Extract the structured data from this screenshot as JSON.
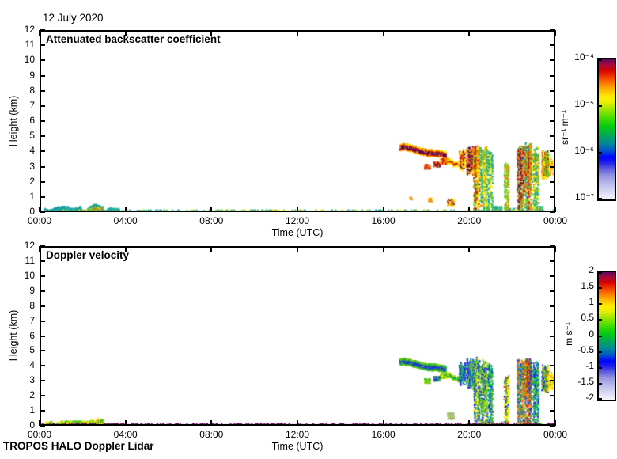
{
  "figure": {
    "date_title": "12 July 2020",
    "footer": "TROPOS HALO Doppler Lidar"
  },
  "colormap_stops": [
    {
      "p": 0.0,
      "c": "#f4f4fb"
    },
    {
      "p": 0.05,
      "c": "#dcdcf4"
    },
    {
      "p": 0.11,
      "c": "#bcbcec"
    },
    {
      "p": 0.17,
      "c": "#9494e0"
    },
    {
      "p": 0.22,
      "c": "#5c5cdc"
    },
    {
      "p": 0.26,
      "c": "#2222ee"
    },
    {
      "p": 0.3,
      "c": "#0000ff"
    },
    {
      "p": 0.35,
      "c": "#0055cc"
    },
    {
      "p": 0.4,
      "c": "#008899"
    },
    {
      "p": 0.46,
      "c": "#00aa55"
    },
    {
      "p": 0.52,
      "c": "#00cc11"
    },
    {
      "p": 0.58,
      "c": "#44dd00"
    },
    {
      "p": 0.64,
      "c": "#99e600"
    },
    {
      "p": 0.69,
      "c": "#e6ee00"
    },
    {
      "p": 0.73,
      "c": "#ffee00"
    },
    {
      "p": 0.78,
      "c": "#ffbb00"
    },
    {
      "p": 0.83,
      "c": "#ff7700"
    },
    {
      "p": 0.88,
      "c": "#f03300"
    },
    {
      "p": 0.92,
      "c": "#d80000"
    },
    {
      "p": 0.96,
      "c": "#a8093c"
    },
    {
      "p": 1.0,
      "c": "#5c0a5c"
    }
  ],
  "chart_data": [
    {
      "type": "heatmap",
      "title": "Attenuated backscatter coefficient",
      "xlabel": "Time (UTC)",
      "ylabel": "Height (km)",
      "xlim_hours": [
        0,
        24
      ],
      "ylim_km": [
        0,
        12
      ],
      "x_ticks": {
        "hours": [
          0,
          4,
          8,
          12,
          16,
          20,
          24
        ],
        "labels": [
          "00:00",
          "04:00",
          "08:00",
          "12:00",
          "16:00",
          "20:00",
          "00:00"
        ]
      },
      "y_ticks": {
        "km": [
          0,
          1,
          2,
          3,
          4,
          5,
          6,
          7,
          8,
          9,
          10,
          11,
          12
        ]
      },
      "colorbar": {
        "unit": "sr⁻¹ m⁻¹",
        "scale": "log",
        "range": [
          "1e-7",
          "1e-4"
        ],
        "tick_labels": [
          "10⁻⁴",
          "10⁻⁵",
          "10⁻⁶",
          "10⁻⁷"
        ]
      },
      "features": [
        {
          "type": "layer",
          "t0": 0.25,
          "t1": 1.95,
          "hmax": 0.38,
          "fill": 0.95,
          "colors": [
            "#18a2a2",
            "#1898a8",
            "#22afa0"
          ],
          "core": [
            "#33bb66"
          ],
          "core_p": 0.12
        },
        {
          "type": "layer",
          "t0": 1.95,
          "t1": 2.95,
          "hmax": 0.52,
          "fill": 1.0,
          "colors": [
            "#18a2a2",
            "#33bb66"
          ],
          "core": [
            "#aadd00",
            "#ffee00",
            "#ff9900",
            "#ff5500"
          ],
          "core_p": 0.55
        },
        {
          "type": "layer",
          "t0": 2.95,
          "t1": 3.75,
          "hmax": 0.3,
          "fill": 0.9,
          "colors": [
            "#18a2a2",
            "#22afa0"
          ],
          "core": [
            "#33bb66"
          ],
          "core_p": 0.2
        },
        {
          "type": "layer",
          "t0": 4.5,
          "t1": 5.35,
          "hmax": 0.15,
          "fill": 0.8,
          "colors": [
            "#18a2a2"
          ],
          "core": [],
          "core_p": 0
        },
        {
          "type": "layer",
          "t0": 6.9,
          "t1": 7.7,
          "hmax": 0.13,
          "fill": 0.7,
          "colors": [
            "#18a2a2",
            "#33bb66"
          ],
          "core": [],
          "core_p": 0
        },
        {
          "type": "layer",
          "t0": 20.2,
          "t1": 23.4,
          "hmax": 0.4,
          "fill": 0.45,
          "colors": [
            "#18a2a2",
            "#33bb66"
          ],
          "core": [
            "#66cc22"
          ],
          "core_p": 0.2
        },
        {
          "type": "band",
          "t0": 16.78,
          "t1": 18.95,
          "h0": 4.3,
          "h1": 3.72,
          "thick": 0.4,
          "gap": 0.05,
          "core": "#5c0a5c",
          "mid": "#cc1100",
          "edges": [
            "#ff8800",
            "#ffee00"
          ]
        },
        {
          "type": "band",
          "t0": 19.0,
          "t1": 19.55,
          "h0": 3.4,
          "h1": 3.05,
          "thick": 0.3,
          "gap": 0.3,
          "core": "#cc1100",
          "mid": "#ff8800",
          "edges": [
            "#ffee00"
          ]
        },
        {
          "type": "spots",
          "items": [
            {
              "t": 18.05,
              "h": 3.0,
              "w": 0.25,
              "hh": 0.3,
              "colors": [
                "#ff8800",
                "#cc1100"
              ]
            },
            {
              "t": 18.5,
              "h": 3.15,
              "w": 0.3,
              "hh": 0.3,
              "colors": [
                "#cc1100",
                "#5c0a5c",
                "#ff8800"
              ]
            },
            {
              "t": 18.85,
              "h": 3.35,
              "w": 0.35,
              "hh": 0.35,
              "colors": [
                "#cc1100",
                "#ff8800",
                "#ffee00"
              ]
            },
            {
              "t": 18.2,
              "h": 0.8,
              "w": 0.15,
              "hh": 0.2,
              "colors": [
                "#ff8800",
                "#ffee00"
              ]
            },
            {
              "t": 19.15,
              "h": 0.65,
              "w": 0.3,
              "hh": 0.4,
              "colors": [
                "#5c0a5c",
                "#ff8800",
                "#ffee00"
              ]
            },
            {
              "t": 17.3,
              "h": 0.9,
              "w": 0.12,
              "hh": 0.15,
              "colors": [
                "#ff8800"
              ]
            }
          ]
        },
        {
          "type": "streaks",
          "items": [
            {
              "t": 19.68,
              "w": 0.25,
              "h0": 2.9,
              "h1": 4.25,
              "colors": [
                "#cc1100",
                "#ff8800",
                "#5c0a5c",
                "#ffee00"
              ],
              "density": 0.75
            },
            {
              "t": 20.05,
              "w": 0.3,
              "h0": 2.6,
              "h1": 4.5,
              "colors": [
                "#5c0a5c",
                "#cc1100",
                "#ff8800",
                "#ffee00"
              ],
              "density": 0.85
            },
            {
              "t": 20.35,
              "w": 0.25,
              "h0": 0.0,
              "h1": 4.6,
              "colors": [
                "#cc1100",
                "#ff8800",
                "#ffee00",
                "#55cc22"
              ],
              "density": 0.8
            },
            {
              "t": 20.7,
              "w": 0.3,
              "h0": 0.0,
              "h1": 4.4,
              "colors": [
                "#55cc22",
                "#ffee00",
                "#ff8800",
                "#22aa88"
              ],
              "density": 0.75
            },
            {
              "t": 21.0,
              "w": 0.2,
              "h0": 0.0,
              "h1": 4.2,
              "colors": [
                "#55cc22",
                "#ffee00",
                "#18a2a2"
              ],
              "density": 0.6
            },
            {
              "t": 21.75,
              "w": 0.2,
              "h0": 0.0,
              "h1": 3.4,
              "colors": [
                "#55cc22",
                "#aadd00",
                "#ff8800"
              ],
              "density": 0.65
            },
            {
              "t": 22.4,
              "w": 0.3,
              "h0": 0.0,
              "h1": 4.5,
              "colors": [
                "#5c0a5c",
                "#cc1100",
                "#ff8800",
                "#55cc22"
              ],
              "density": 0.85
            },
            {
              "t": 22.75,
              "w": 0.3,
              "h0": 0.0,
              "h1": 4.6,
              "colors": [
                "#cc1100",
                "#ff8800",
                "#ffee00",
                "#55cc22",
                "#18a2a2"
              ],
              "density": 0.9
            },
            {
              "t": 23.1,
              "w": 0.25,
              "h0": 0.0,
              "h1": 4.3,
              "colors": [
                "#55cc22",
                "#ffee00",
                "#ff8800",
                "#18a2a2"
              ],
              "density": 0.7
            },
            {
              "t": 23.55,
              "w": 0.3,
              "h0": 2.4,
              "h1": 4.2,
              "colors": [
                "#ff8800",
                "#cc1100",
                "#ffee00",
                "#55cc22"
              ],
              "density": 0.8
            },
            {
              "t": 23.85,
              "w": 0.2,
              "h0": 2.6,
              "h1": 3.6,
              "colors": [
                "#ff8800",
                "#ffee00"
              ],
              "density": 0.7
            }
          ]
        },
        {
          "type": "line",
          "t0": 0,
          "t1": 24,
          "h": 0.07,
          "fill": 0.8,
          "colors": [
            "#18a2a2",
            "#18a2a2",
            "#1898a8",
            "#33bb66",
            "#88cc00",
            "#eedd00"
          ]
        },
        {
          "type": "line",
          "t0": 8.0,
          "t1": 12.3,
          "h": 0.07,
          "fill": 0.35,
          "colors": [
            "#ffdd00",
            "#ff9900",
            "#99cc00"
          ]
        }
      ]
    },
    {
      "type": "heatmap",
      "title": "Doppler velocity",
      "xlabel": "Time (UTC)",
      "ylabel": "Height (km)",
      "xlim_hours": [
        0,
        24
      ],
      "ylim_km": [
        0,
        12
      ],
      "x_ticks": {
        "hours": [
          0,
          4,
          8,
          12,
          16,
          20,
          24
        ],
        "labels": [
          "00:00",
          "04:00",
          "08:00",
          "12:00",
          "16:00",
          "20:00",
          "00:00"
        ]
      },
      "y_ticks": {
        "km": [
          0,
          1,
          2,
          3,
          4,
          5,
          6,
          7,
          8,
          9,
          10,
          11,
          12
        ]
      },
      "colorbar": {
        "unit": "m s⁻¹",
        "scale": "linear",
        "range": [
          -2,
          2
        ],
        "tick_labels": [
          "2",
          "1.5",
          "1",
          "0.5",
          "0",
          "-0.5",
          "-1",
          "-1.5",
          "-2"
        ]
      },
      "features": [
        {
          "type": "layer",
          "t0": 0.3,
          "t1": 1.9,
          "hmax": 0.35,
          "fill": 0.85,
          "colors": [
            "#33bb22",
            "#77cc00",
            "#ffee00"
          ],
          "core": [
            "#ff8800"
          ],
          "core_p": 0.08
        },
        {
          "type": "layer",
          "t0": 1.95,
          "t1": 2.95,
          "hmax": 0.5,
          "fill": 0.95,
          "colors": [
            "#33bb22",
            "#aadd00",
            "#ffee00"
          ],
          "core": [
            "#ff8800",
            "#dd2200",
            "#2233dd"
          ],
          "core_p": 0.12
        },
        {
          "type": "layer",
          "t0": 2.95,
          "t1": 3.7,
          "hmax": 0.3,
          "fill": 0.8,
          "colors": [
            "#33bb22",
            "#aadd00",
            "#ffee00"
          ],
          "core": [],
          "core_p": 0
        },
        {
          "type": "layer",
          "t0": 20.2,
          "t1": 23.4,
          "hmax": 0.35,
          "fill": 0.4,
          "colors": [
            "#ffee00",
            "#ff8800",
            "#2233dd",
            "#33bb22"
          ],
          "core": [],
          "core_p": 0
        },
        {
          "type": "band",
          "t0": 16.78,
          "t1": 18.95,
          "h0": 4.3,
          "h1": 3.72,
          "thick": 0.4,
          "gap": 0.08,
          "core": "#2233dd",
          "mid": "#11aa55",
          "edges": [
            "#33bb22",
            "#88cc00"
          ]
        },
        {
          "type": "band",
          "t0": 19.0,
          "t1": 19.55,
          "h0": 3.4,
          "h1": 3.05,
          "thick": 0.3,
          "gap": 0.3,
          "core": "#11aa55",
          "mid": "#33bb22",
          "edges": [
            "#aadd00"
          ]
        },
        {
          "type": "spots",
          "items": [
            {
              "t": 18.05,
              "h": 3.0,
              "w": 0.25,
              "hh": 0.3,
              "colors": [
                "#33bb22",
                "#aadd00"
              ]
            },
            {
              "t": 18.5,
              "h": 3.15,
              "w": 0.3,
              "hh": 0.3,
              "colors": [
                "#2233dd",
                "#33bb22"
              ]
            },
            {
              "t": 18.85,
              "h": 3.35,
              "w": 0.35,
              "hh": 0.35,
              "colors": [
                "#33bb22",
                "#ffee00"
              ]
            },
            {
              "t": 19.15,
              "h": 0.65,
              "w": 0.3,
              "hh": 0.4,
              "colors": [
                "#bbbbcc",
                "#99aa99",
                "#aadd00"
              ]
            }
          ]
        },
        {
          "type": "streaks",
          "items": [
            {
              "t": 19.68,
              "w": 0.25,
              "h0": 2.9,
              "h1": 4.25,
              "colors": [
                "#33bb22",
                "#2233dd",
                "#00aa88"
              ],
              "density": 0.75
            },
            {
              "t": 20.05,
              "w": 0.3,
              "h0": 2.6,
              "h1": 4.5,
              "colors": [
                "#2233dd",
                "#33bb22",
                "#0077cc",
                "#aadd00"
              ],
              "density": 0.85
            },
            {
              "t": 20.35,
              "w": 0.25,
              "h0": 0.0,
              "h1": 4.6,
              "colors": [
                "#2233dd",
                "#33bb22",
                "#00aa88",
                "#ffee00"
              ],
              "density": 0.8
            },
            {
              "t": 20.7,
              "w": 0.3,
              "h0": 0.0,
              "h1": 4.4,
              "colors": [
                "#33bb22",
                "#2233dd",
                "#aadd00"
              ],
              "density": 0.75
            },
            {
              "t": 21.0,
              "w": 0.2,
              "h0": 0.0,
              "h1": 4.2,
              "colors": [
                "#33bb22",
                "#00aa88",
                "#2233dd"
              ],
              "density": 0.6
            },
            {
              "t": 21.75,
              "w": 0.2,
              "h0": 0.0,
              "h1": 3.4,
              "colors": [
                "#33bb22",
                "#dd2200",
                "#ffee00",
                "#2233dd"
              ],
              "density": 0.65
            },
            {
              "t": 22.4,
              "w": 0.3,
              "h0": 0.0,
              "h1": 4.5,
              "colors": [
                "#2233dd",
                "#0077cc",
                "#33bb22",
                "#ff8800"
              ],
              "density": 0.85
            },
            {
              "t": 22.75,
              "w": 0.3,
              "h0": 0.0,
              "h1": 4.6,
              "colors": [
                "#2233dd",
                "#33bb22",
                "#ff8800",
                "#dd2200"
              ],
              "density": 0.9
            },
            {
              "t": 23.1,
              "w": 0.25,
              "h0": 0.0,
              "h1": 4.3,
              "colors": [
                "#2233dd",
                "#33bb22",
                "#00aa88"
              ],
              "density": 0.7
            },
            {
              "t": 23.55,
              "w": 0.3,
              "h0": 2.4,
              "h1": 4.2,
              "colors": [
                "#33bb22",
                "#ff8800",
                "#ffee00",
                "#2233dd"
              ],
              "density": 0.8
            },
            {
              "t": 23.85,
              "w": 0.2,
              "h0": 2.6,
              "h1": 3.6,
              "colors": [
                "#ffee00",
                "#aadd00",
                "#ff8800"
              ],
              "density": 0.7
            }
          ]
        },
        {
          "type": "line",
          "t0": 0,
          "t1": 24,
          "h": 0.07,
          "fill": 0.9,
          "colors": [
            "#55004f",
            "#55004f",
            "#55004f",
            "#770a60"
          ]
        }
      ]
    }
  ]
}
